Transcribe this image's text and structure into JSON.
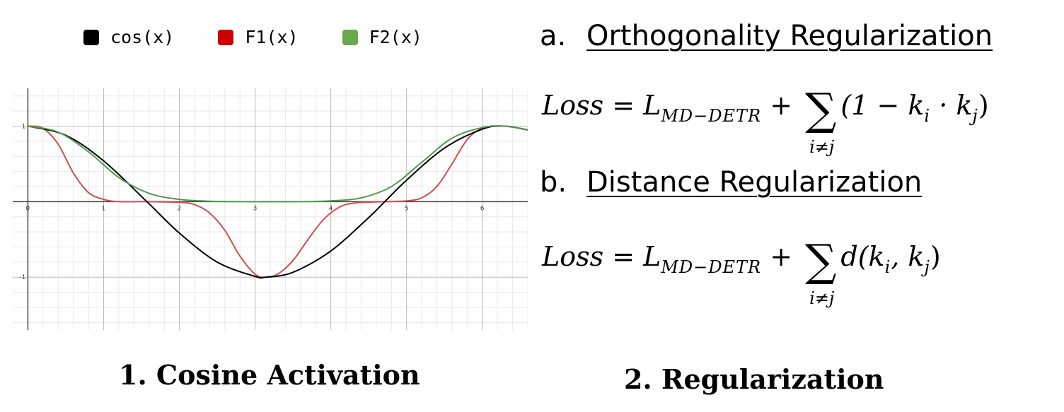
{
  "legend": [
    {
      "label": "cos(x)",
      "color": "#000000"
    },
    {
      "label": "F1(x)",
      "color": "#cc0000"
    },
    {
      "label": "F2(x)",
      "color": "#6aa84f"
    }
  ],
  "chart_data": {
    "type": "line",
    "title": "",
    "xlabel": "",
    "ylabel": "",
    "xlim": [
      -0.2,
      6.6
    ],
    "ylim": [
      -1.7,
      1.5
    ],
    "grid": true,
    "legend_position": "top",
    "x_ticks": [
      "0",
      "1",
      "2",
      "3",
      "4",
      "5",
      "6"
    ],
    "y_ticks": [
      "1",
      "-1"
    ],
    "series": [
      {
        "name": "cos(x)",
        "color": "#000000",
        "x": [
          0,
          0.5,
          1.0,
          1.571,
          2.0,
          2.5,
          3.0,
          3.1416,
          3.5,
          4.0,
          4.5,
          4.712,
          5.0,
          5.5,
          6.0,
          6.283,
          6.6
        ],
        "y": [
          1.0,
          0.878,
          0.54,
          0.0,
          -0.416,
          -0.801,
          -0.99,
          -1.0,
          -0.936,
          -0.654,
          -0.211,
          0.0,
          0.284,
          0.709,
          0.96,
          1.0,
          0.95
        ]
      },
      {
        "name": "F1(x)",
        "color": "#cc5050",
        "x": [
          0,
          0.2,
          0.4,
          0.6,
          0.8,
          1.0,
          1.2,
          1.571,
          2.0,
          2.2,
          2.4,
          2.6,
          2.8,
          3.0,
          3.1416,
          3.3,
          3.5,
          3.7,
          3.9,
          4.1,
          4.3,
          4.712,
          5.0,
          5.2,
          5.4,
          5.6,
          5.8,
          6.0,
          6.283,
          6.6
        ],
        "y": [
          1.0,
          0.97,
          0.76,
          0.38,
          0.12,
          0.03,
          0.0,
          0.0,
          -0.01,
          -0.04,
          -0.15,
          -0.38,
          -0.72,
          -0.96,
          -1.0,
          -0.96,
          -0.78,
          -0.5,
          -0.24,
          -0.08,
          -0.02,
          0.0,
          0.01,
          0.05,
          0.2,
          0.5,
          0.82,
          0.97,
          1.0,
          0.95
        ]
      },
      {
        "name": "F2(x)",
        "color": "#4e9a4e",
        "x": [
          0,
          0.4,
          0.8,
          1.2,
          1.6,
          2.0,
          2.4,
          2.8,
          3.1416,
          3.6,
          4.0,
          4.4,
          4.8,
          5.2,
          5.6,
          6.0,
          6.283,
          6.6
        ],
        "y": [
          1.0,
          0.92,
          0.66,
          0.32,
          0.11,
          0.03,
          0.005,
          0.0,
          0.0,
          0.0,
          0.01,
          0.05,
          0.2,
          0.52,
          0.84,
          0.98,
          1.0,
          0.95
        ]
      }
    ]
  },
  "captions": {
    "left": "1. Cosine Activation",
    "right": "2. Regularization"
  },
  "section_a": {
    "letter": "a.",
    "title": "Orthogonality Regularization"
  },
  "section_b": {
    "letter": "b.",
    "title": "Distance Regularization"
  },
  "formula_a": {
    "lhs": "Loss",
    "eq": " = ",
    "L": "L",
    "L_sub": "MD−DETR",
    "plus": " + ",
    "sum": "∑",
    "sum_sub": "i≠j",
    "rest": "(1 − k",
    "ki_sub": "i",
    "dot": " · k",
    "kj_sub": "j",
    "close": ")"
  },
  "formula_b": {
    "lhs": "Loss",
    "eq": " = ",
    "L": "L",
    "L_sub": "MD−DETR",
    "plus": " + ",
    "sum": "∑",
    "sum_sub": "i≠j",
    "rest": "d(k",
    "ki_sub": "i",
    "comma": ", k",
    "kj_sub": "j",
    "close": ")"
  }
}
